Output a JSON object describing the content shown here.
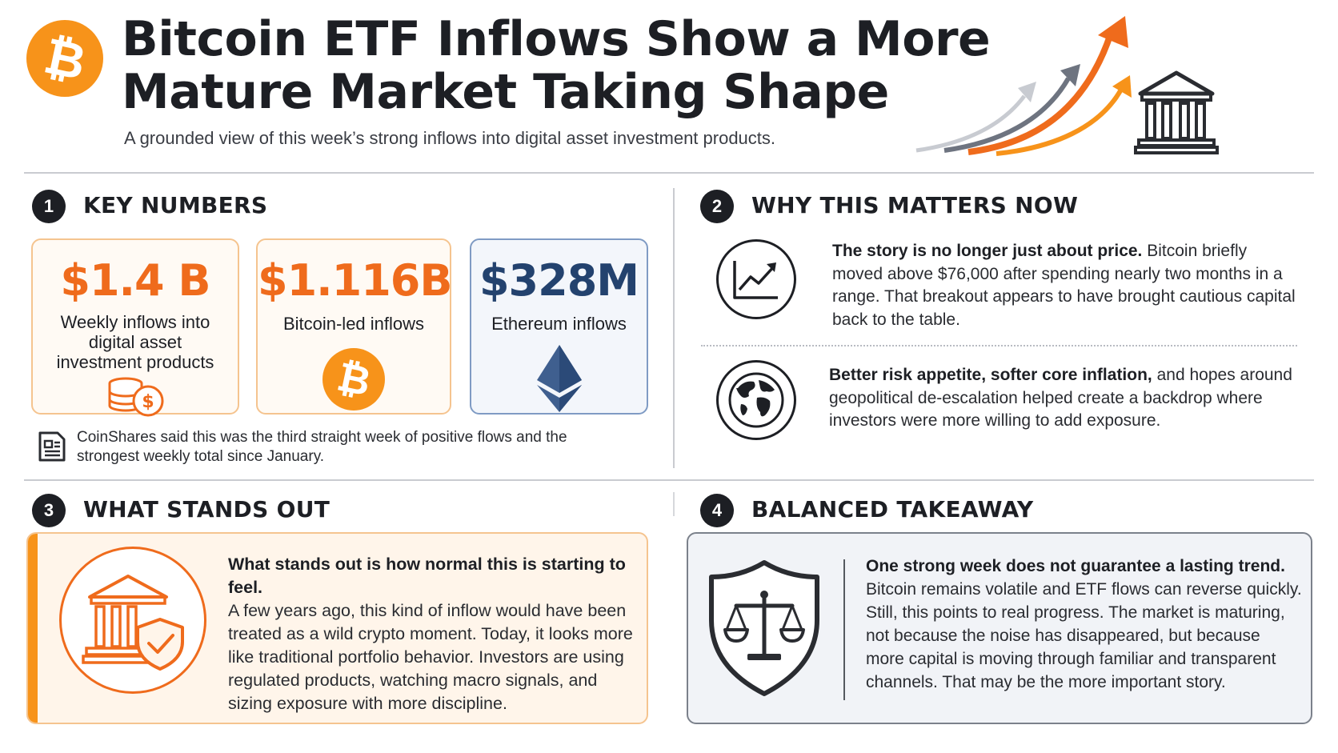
{
  "header": {
    "title": "Bitcoin ETF Inflows Show a More Mature Market Taking Shape",
    "subtitle": "A grounded view of this week’s strong inflows into digital asset investment products."
  },
  "sections": {
    "key_numbers": {
      "number": "1",
      "title": "KEY NUMBERS",
      "cards": [
        {
          "value": "$1.4 B",
          "label": "Weekly inflows into digital asset investment products"
        },
        {
          "value": "$1.116B",
          "label": "Bitcoin-led inflows"
        },
        {
          "value": "$328M",
          "label": "Ethereum inflows"
        }
      ],
      "note": "CoinShares said this was the third straight week of positive flows and the strongest weekly total since January."
    },
    "why_matters": {
      "number": "2",
      "title": "WHY THIS MATTERS NOW",
      "items": [
        {
          "lead": "The story is no longer just about price.",
          "body": " Bitcoin briefly moved above $76,000 after spending nearly two months in a range. That breakout appears to have brought cautious capital back to the table."
        },
        {
          "lead": "Better risk appetite, softer core inflation,",
          "body": " and hopes around geopolitical de-escalation helped create a backdrop where investors were more willing to add exposure."
        }
      ]
    },
    "stands_out": {
      "number": "3",
      "title": "WHAT STANDS OUT",
      "lead": "What stands out is how normal this is starting to feel.",
      "body": "A few years ago, this kind of inflow would have been treated as a wild crypto moment. Today, it looks more like traditional portfolio behavior. Investors are using regulated products, watching macro signals, and sizing exposure with more discipline."
    },
    "takeaway": {
      "number": "4",
      "title": "BALANCED TAKEAWAY",
      "lead": "One strong week does not guarantee a lasting trend.",
      "body": "Bitcoin remains volatile and ETF flows can reverse quickly. Still, this points to real progress. The market is maturing, not because the noise has disappeared, but because more capital is moving through familiar and transparent channels. That may be the more important story."
    }
  },
  "colors": {
    "accent_orange": "#f7931a",
    "value_orange": "#ef6b1c",
    "navy": "#23426e",
    "ink": "#1d1f24"
  },
  "icons": {
    "header_logo": "bitcoin-logo-icon",
    "header_art": "rising-arrows-icon",
    "header_bank": "bank-building-icon",
    "card1": "coin-stack-dollar-icon",
    "card2": "bitcoin-coin-icon",
    "card3": "ethereum-diamond-icon",
    "note": "document-icon",
    "why1": "trend-chart-icon",
    "why2": "globe-icon",
    "stands_out": "bank-shield-check-icon",
    "takeaway": "shield-scales-icon"
  }
}
